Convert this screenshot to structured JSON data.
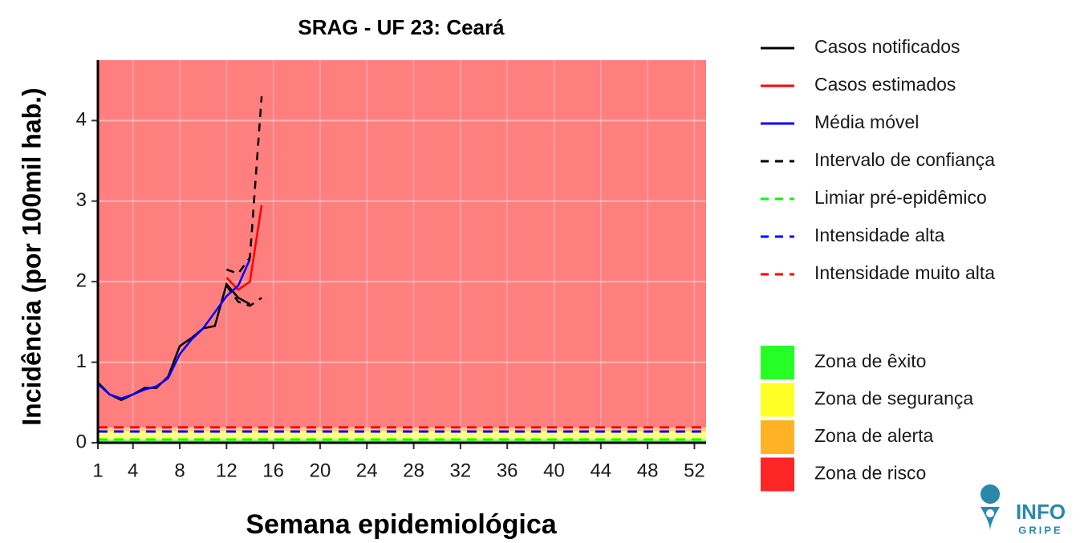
{
  "chart_data": {
    "type": "line",
    "title": "SRAG - UF 23: Ceará",
    "x_label": "Semana epidemiológica",
    "y_label": "Incidência (por 100mil hab.)",
    "xlim": [
      1,
      53
    ],
    "ylim": [
      0,
      4.75
    ],
    "xticks": [
      1,
      4,
      8,
      12,
      16,
      20,
      24,
      28,
      32,
      36,
      40,
      44,
      48,
      52
    ],
    "yticks": [
      0,
      1,
      2,
      3,
      4
    ],
    "grid": true,
    "series": [
      {
        "name": "Casos notificados",
        "color": "#000000",
        "style": "solid",
        "x": [
          1,
          2,
          3,
          4,
          5,
          6,
          7,
          8,
          9,
          10,
          11,
          12,
          13,
          14
        ],
        "values": [
          0.75,
          0.6,
          0.53,
          0.6,
          0.68,
          0.68,
          0.82,
          1.2,
          1.3,
          1.42,
          1.45,
          1.97,
          1.8,
          1.72
        ]
      },
      {
        "name": "Casos estimados",
        "color": "#ff0000",
        "style": "solid",
        "x": [
          12,
          13,
          14,
          15
        ],
        "values": [
          2.05,
          1.9,
          2.0,
          2.95
        ]
      },
      {
        "name": "Média móvel",
        "color": "#0000ff",
        "style": "solid",
        "x": [
          1,
          2,
          3,
          4,
          5,
          6,
          7,
          8,
          9,
          10,
          11,
          12,
          13,
          14
        ],
        "values": [
          0.73,
          0.6,
          0.55,
          0.6,
          0.66,
          0.7,
          0.8,
          1.1,
          1.28,
          1.42,
          1.62,
          1.82,
          1.95,
          2.28
        ]
      },
      {
        "name": "Intervalo de confiança",
        "color": "#000000",
        "style": "dashed",
        "x": [
          12,
          13,
          14,
          15
        ],
        "values": [
          2.15,
          2.1,
          2.3,
          4.3
        ],
        "lower": [
          1.95,
          1.75,
          1.7,
          1.8
        ]
      },
      {
        "name": "Limiar pré-epidêmico",
        "color": "#00ff00",
        "style": "dashed",
        "value": 0.04
      },
      {
        "name": "Intensidade alta",
        "color": "#0000ff",
        "style": "dashed",
        "value": 0.14
      },
      {
        "name": "Intensidade muito alta",
        "color": "#ff0000",
        "style": "dashed",
        "value": 0.19
      }
    ],
    "zones": [
      {
        "name": "Zona de êxito",
        "color": "#00ff00"
      },
      {
        "name": "Zona de segurança",
        "color": "#ffff00"
      },
      {
        "name": "Zona de alerta",
        "color": "#ffa500"
      },
      {
        "name": "Zona de risco",
        "color": "#ff0000"
      }
    ],
    "logo_text": [
      "INFO",
      "GRIPE"
    ]
  }
}
